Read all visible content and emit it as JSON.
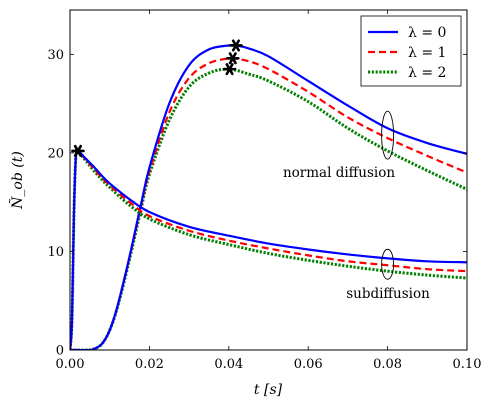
{
  "chart_data": {
    "type": "line",
    "xlabel": "t [s]",
    "ylabel": "Ñ_ob (t)",
    "xlim": [
      0,
      0.1
    ],
    "ylim": [
      0,
      34.5
    ],
    "xticks": [
      {
        "value": 0,
        "label": "0.00"
      },
      {
        "value": 0.02,
        "label": "0.02"
      },
      {
        "value": 0.04,
        "label": "0.04"
      },
      {
        "value": 0.06,
        "label": "0.06"
      },
      {
        "value": 0.08,
        "label": "0.08"
      },
      {
        "value": 0.1,
        "label": "0.10"
      }
    ],
    "yticks": [
      {
        "value": 0,
        "label": "0"
      },
      {
        "value": 10,
        "label": "10"
      },
      {
        "value": 20,
        "label": "20"
      },
      {
        "value": 30,
        "label": "30"
      }
    ],
    "grid": false,
    "legend_position": "top-right",
    "series_styles": [
      {
        "name": "λ = 0",
        "color": "#0000ff",
        "dash": "solid"
      },
      {
        "name": "λ = 1",
        "color": "#ff0000",
        "dash": "dashed"
      },
      {
        "name": "λ = 2",
        "color": "#008000",
        "dash": "dotted"
      }
    ],
    "groups": [
      {
        "label": "normal diffusion",
        "series": [
          {
            "name": "λ = 0",
            "x": [
              0,
              0.005,
              0.006,
              0.008,
              0.01,
              0.012,
              0.015,
              0.018,
              0.02,
              0.025,
              0.03,
              0.035,
              0.04,
              0.042,
              0.045,
              0.05,
              0.06,
              0.07,
              0.08,
              0.09,
              0.1
            ],
            "y": [
              0,
              0,
              0.1,
              0.6,
              2.0,
              4.5,
              9.5,
              15.0,
              18.5,
              25.0,
              28.9,
              30.5,
              30.9,
              30.9,
              30.6,
              29.8,
              27.3,
              24.8,
              22.5,
              21.0,
              19.9
            ]
          },
          {
            "name": "λ = 1",
            "x": [
              0,
              0.005,
              0.006,
              0.008,
              0.01,
              0.012,
              0.015,
              0.018,
              0.02,
              0.025,
              0.03,
              0.035,
              0.04,
              0.041,
              0.045,
              0.05,
              0.06,
              0.07,
              0.08,
              0.09,
              0.1
            ],
            "y": [
              0,
              0,
              0.1,
              0.6,
              2.0,
              4.5,
              9.4,
              14.8,
              18.1,
              24.1,
              27.6,
              29.1,
              29.6,
              29.6,
              29.3,
              28.5,
              26.2,
              23.6,
              21.5,
              19.7,
              18.0
            ]
          },
          {
            "name": "λ = 2",
            "x": [
              0,
              0.005,
              0.006,
              0.008,
              0.01,
              0.012,
              0.015,
              0.018,
              0.02,
              0.025,
              0.03,
              0.035,
              0.04,
              0.045,
              0.05,
              0.06,
              0.07,
              0.08,
              0.09,
              0.1
            ],
            "y": [
              0,
              0,
              0.1,
              0.6,
              2.0,
              4.4,
              9.2,
              14.5,
              17.8,
              23.3,
              26.7,
              28.1,
              28.5,
              28.0,
              27.3,
              25.2,
              22.5,
              20.2,
              18.2,
              16.3
            ]
          }
        ],
        "peaks": [
          [
            0.0418,
            30.9
          ],
          [
            0.041,
            29.6
          ],
          [
            0.0402,
            28.5
          ]
        ],
        "ellipse": {
          "x": 0.08,
          "y": 21.8
        }
      },
      {
        "label": "subdiffusion",
        "series": [
          {
            "name": "λ = 0",
            "x": [
              0,
              0.0005,
              0.001,
              0.0015,
              0.002,
              0.004,
              0.006,
              0.008,
              0.01,
              0.015,
              0.02,
              0.03,
              0.04,
              0.05,
              0.06,
              0.07,
              0.08,
              0.09,
              0.1
            ],
            "y": [
              0,
              3.0,
              14.0,
              19.8,
              20.2,
              19.4,
              18.6,
              17.7,
              16.9,
              15.3,
              14.0,
              12.5,
              11.6,
              10.8,
              10.2,
              9.7,
              9.3,
              9.0,
              8.9
            ]
          },
          {
            "name": "λ = 1",
            "x": [
              0,
              0.0005,
              0.001,
              0.0015,
              0.002,
              0.004,
              0.006,
              0.008,
              0.01,
              0.015,
              0.02,
              0.03,
              0.04,
              0.05,
              0.06,
              0.07,
              0.08,
              0.09,
              0.1
            ],
            "y": [
              0,
              3.0,
              14.0,
              19.8,
              20.2,
              19.3,
              18.4,
              17.5,
              16.7,
              15.0,
              13.6,
              12.1,
              11.1,
              10.3,
              9.6,
              9.0,
              8.6,
              8.2,
              8.0
            ]
          },
          {
            "name": "λ = 2",
            "x": [
              0,
              0.0005,
              0.001,
              0.0015,
              0.002,
              0.004,
              0.006,
              0.008,
              0.01,
              0.015,
              0.02,
              0.03,
              0.04,
              0.05,
              0.06,
              0.07,
              0.08,
              0.09,
              0.1
            ],
            "y": [
              0,
              3.0,
              14.0,
              19.8,
              20.1,
              19.2,
              18.2,
              17.3,
              16.5,
              14.7,
              13.3,
              11.7,
              10.7,
              9.8,
              9.1,
              8.5,
              8.0,
              7.6,
              7.3
            ]
          }
        ],
        "peaks": [
          [
            0.002,
            20.2
          ]
        ],
        "ellipse": {
          "x": 0.08,
          "y": 8.7
        }
      }
    ]
  }
}
